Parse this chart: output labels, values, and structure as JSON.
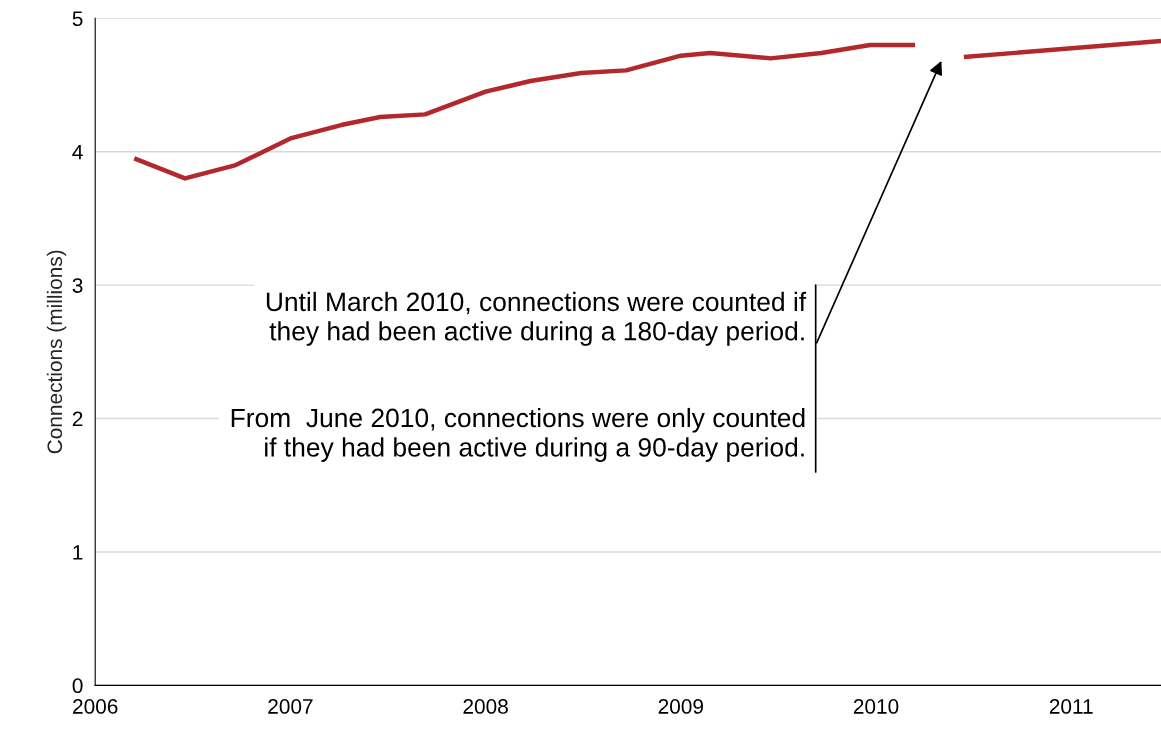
{
  "chart_data": {
    "type": "line",
    "x": [
      2006.2,
      2006.46,
      2006.72,
      2007.0,
      2007.26,
      2007.46,
      2007.69,
      2008.0,
      2008.23,
      2008.49,
      2008.72,
      2009.0,
      2009.15,
      2009.46,
      2009.72,
      2009.97,
      2010.2,
      2010.33,
      2010.45,
      2011.46
    ],
    "series": [
      {
        "color": "#b3282d",
        "values": [
          3.95,
          3.8,
          3.9,
          4.1,
          4.2,
          4.26,
          4.28,
          4.45,
          4.53,
          4.59,
          4.61,
          4.72,
          4.74,
          4.7,
          4.74,
          4.8,
          4.8,
          null,
          4.71,
          4.83
        ]
      }
    ],
    "ylabel": "Connections (millions)",
    "xlim": [
      2006,
      2011.46
    ],
    "xticks": [
      2006,
      2007,
      2008,
      2009,
      2010,
      2011
    ],
    "ylim": [
      0,
      5
    ],
    "yticks": [
      0,
      1,
      2,
      3,
      4,
      5
    ],
    "grid": "y",
    "legend": false,
    "marker": "none",
    "line_style": "solid",
    "annotations": [
      "Until March 2010, connections were counted if\nthey had been active during a 180-day period.",
      "From  June 2010, connections were only counted\nif they had been active during a 90-day period."
    ]
  }
}
